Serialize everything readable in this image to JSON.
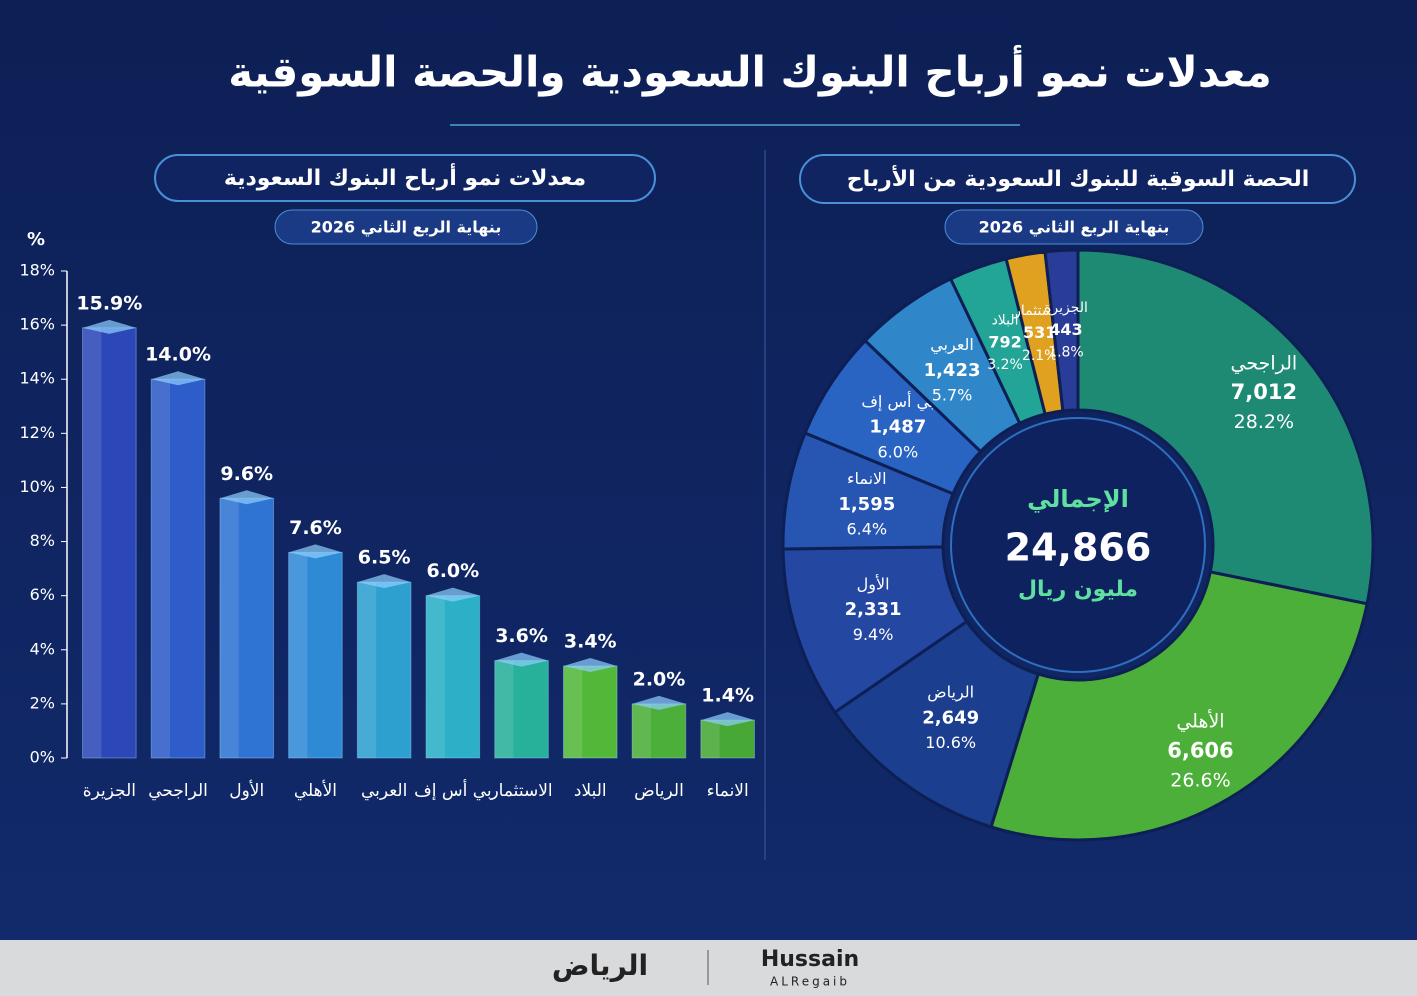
{
  "title": "معدلات نمو أرباح البنوك السعودية والحصة السوقية",
  "chart_data": [
    {
      "type": "bar",
      "title": "معدلات نمو أرباح البنوك السعودية",
      "subtitle": "بنهاية الربع الثاني 2026",
      "y_label": "%",
      "categories": [
        "الجزيرة",
        "الراجحي",
        "الأول",
        "الأهلي",
        "العربي",
        "بي أس إف",
        "الاستثمار",
        "البلاد",
        "الرياض",
        "الانماء"
      ],
      "values": [
        15.9,
        14.0,
        9.6,
        7.6,
        6.5,
        6.0,
        3.6,
        3.4,
        2.0,
        1.4
      ],
      "value_labels": [
        "15.9%",
        "14.0%",
        "9.6%",
        "7.6%",
        "6.5%",
        "6.0%",
        "3.6%",
        "3.4%",
        "2.0%",
        "1.4%"
      ],
      "colors": [
        "#2c48b8",
        "#2e5cc8",
        "#2f74d2",
        "#2f8ad6",
        "#2ea0d0",
        "#2bb0c8",
        "#27b09a",
        "#52b83a",
        "#4caf3a",
        "#47a836"
      ],
      "ylim": [
        0,
        18
      ],
      "yticks": [
        {
          "value": 0,
          "label": "0%"
        },
        {
          "value": 2,
          "label": "2%"
        },
        {
          "value": 4,
          "label": "4%"
        },
        {
          "value": 6,
          "label": "6%"
        },
        {
          "value": 8,
          "label": "8%"
        },
        {
          "value": 10,
          "label": "10%"
        },
        {
          "value": 12,
          "label": "12%"
        },
        {
          "value": 14,
          "label": "14%"
        },
        {
          "value": 16,
          "label": "16%"
        },
        {
          "value": 18,
          "label": "18%"
        }
      ]
    },
    {
      "type": "donut",
      "title": "الحصة السوقية للبنوك السعودية من الأرباح",
      "subtitle": "بنهاية الربع الثاني 2026",
      "categories": [
        "الراجحي",
        "الأهلي",
        "الرياض",
        "الأول",
        "الانماء",
        "بي أس إف",
        "العربي",
        "البلاد",
        "الاستثمار",
        "الجزيرة"
      ],
      "values": [
        7012,
        6606,
        2649,
        2331,
        1595,
        1487,
        1423,
        792,
        531,
        443
      ],
      "value_labels": [
        "7,012",
        "6,606",
        "2,649",
        "2,331",
        "1,595",
        "1,487",
        "1,423",
        "792",
        "531",
        "443"
      ],
      "share_labels": [
        "28.2%",
        "26.6%",
        "10.6%",
        "9.4%",
        "6.4%",
        "6.0%",
        "5.7%",
        "3.2%",
        "2.1%",
        "1.8%"
      ],
      "colors": [
        "#1f8a74",
        "#4caf3a",
        "#1b3f8e",
        "#2447a2",
        "#2755b2",
        "#2a64c2",
        "#2f86c8",
        "#22a596",
        "#e0a020",
        "#283c98"
      ],
      "center_label": "الإجمالي",
      "total": 24866,
      "total_label": "24,866",
      "unit": "مليون ريال"
    }
  ],
  "footer": {
    "brand": "الرياض",
    "author": "Hussain",
    "author_sub": "ALRegaib"
  }
}
